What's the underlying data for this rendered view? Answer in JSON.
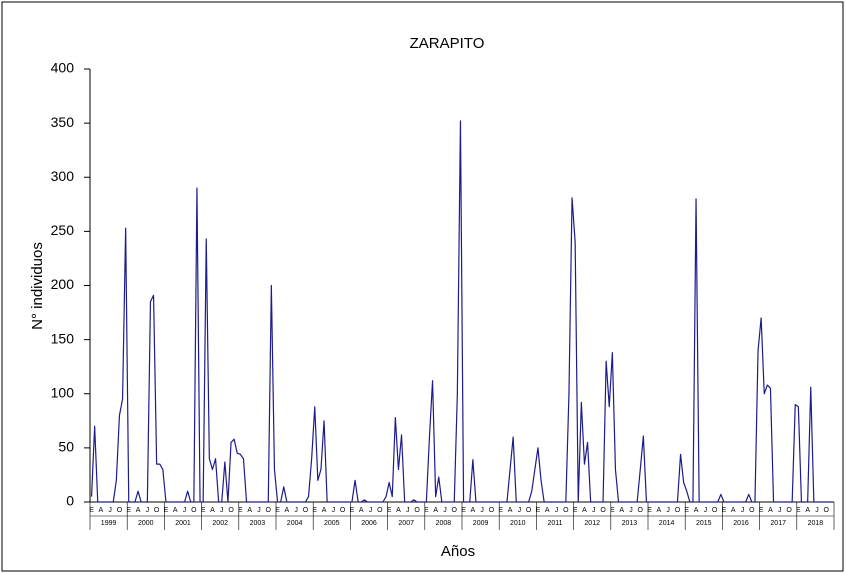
{
  "chart_data": {
    "type": "line",
    "title": "ZARAPITO",
    "y_label": "N° individuos",
    "x_label": "Años",
    "categories": [
      "E",
      null,
      null,
      "A",
      null,
      null,
      "J",
      null,
      null,
      "O",
      null,
      null,
      "E",
      null,
      null,
      "A",
      null,
      null,
      "J",
      null,
      null,
      "O",
      null,
      null,
      "E",
      null,
      null,
      "A",
      null,
      null,
      "J",
      null,
      null,
      "O",
      null,
      null,
      "E",
      null,
      null,
      "A",
      null,
      null,
      "J",
      null,
      null,
      "O",
      null,
      null,
      "E",
      null,
      null,
      "A",
      null,
      null,
      "J",
      null,
      null,
      "O",
      null,
      null,
      "E",
      null,
      null,
      "A",
      null,
      null,
      "J",
      null,
      null,
      "O",
      null,
      null,
      "E",
      null,
      null,
      "A",
      null,
      null,
      "J",
      null,
      null,
      "O",
      null,
      null,
      "E",
      null,
      null,
      "A",
      null,
      null,
      "J",
      null,
      null,
      "O",
      null,
      null,
      "E",
      null,
      null,
      "A",
      null,
      null,
      "J",
      null,
      null,
      "O",
      null,
      null,
      "E",
      null,
      null,
      "A",
      null,
      null,
      "J",
      null,
      null,
      "O",
      null,
      null,
      "E",
      null,
      null,
      "A",
      null,
      null,
      "J",
      null,
      null,
      "O",
      null,
      null,
      "E",
      null,
      null,
      "A",
      null,
      null,
      "J",
      null,
      null,
      "O",
      null,
      null,
      "E",
      null,
      null,
      "A",
      null,
      null,
      "J",
      null,
      null,
      "O",
      null,
      null,
      "E",
      null,
      null,
      "A",
      null,
      null,
      "J",
      null,
      null,
      "O",
      null,
      null,
      "E",
      null,
      null,
      "A",
      null,
      null,
      "J",
      null,
      null,
      "O",
      null,
      null,
      "E",
      null,
      null,
      "A",
      null,
      null,
      "J",
      null,
      null,
      "O",
      null,
      null,
      "E",
      null,
      null,
      "A",
      null,
      null,
      "J",
      null,
      null,
      "O",
      null,
      null,
      "E",
      null,
      null,
      "A",
      null,
      null,
      "J",
      null,
      null,
      "O",
      null,
      null,
      "E",
      null,
      null,
      "A",
      null,
      null,
      "J",
      null,
      null,
      "O",
      null,
      null,
      "E",
      null,
      null,
      "A",
      null,
      null,
      "J",
      null,
      null,
      "O",
      null,
      null
    ],
    "years": [
      "1999",
      "2000",
      "2001",
      "2002",
      "2003",
      "2004",
      "2005",
      "2006",
      "2007",
      "2008",
      "2009",
      "2010",
      "2011",
      "2012",
      "2013",
      "2014",
      "2015",
      "2016",
      "2017",
      "2018"
    ],
    "values": [
      5,
      70,
      0,
      0,
      0,
      0,
      0,
      0,
      20,
      80,
      95,
      253,
      0,
      0,
      0,
      10,
      0,
      0,
      0,
      185,
      191,
      35,
      35,
      30,
      0,
      0,
      0,
      0,
      0,
      0,
      0,
      10,
      0,
      0,
      290,
      0,
      0,
      243,
      40,
      30,
      40,
      0,
      0,
      37,
      0,
      55,
      58,
      45,
      44,
      40,
      0,
      0,
      0,
      0,
      0,
      0,
      0,
      0,
      200,
      30,
      0,
      0,
      14,
      0,
      0,
      0,
      0,
      0,
      0,
      0,
      5,
      40,
      88,
      20,
      30,
      75,
      0,
      0,
      0,
      0,
      0,
      0,
      0,
      0,
      0,
      20,
      0,
      0,
      2,
      0,
      0,
      0,
      0,
      0,
      0,
      5,
      18,
      5,
      78,
      30,
      62,
      0,
      0,
      0,
      2,
      0,
      0,
      0,
      0,
      60,
      112,
      5,
      23,
      0,
      0,
      0,
      0,
      0,
      100,
      352,
      0,
      0,
      0,
      39,
      0,
      0,
      0,
      0,
      0,
      0,
      0,
      0,
      0,
      0,
      0,
      30,
      60,
      0,
      0,
      0,
      0,
      0,
      10,
      30,
      50,
      20,
      0,
      0,
      0,
      0,
      0,
      0,
      0,
      0,
      100,
      281,
      240,
      0,
      92,
      35,
      55,
      0,
      0,
      0,
      0,
      0,
      130,
      88,
      138,
      30,
      0,
      0,
      0,
      0,
      0,
      0,
      0,
      30,
      61,
      0,
      0,
      0,
      0,
      0,
      0,
      0,
      0,
      0,
      0,
      0,
      44,
      18,
      10,
      0,
      0,
      280,
      0,
      0,
      0,
      0,
      0,
      0,
      0,
      7,
      0,
      0,
      0,
      0,
      0,
      0,
      0,
      0,
      7,
      0,
      0,
      140,
      170,
      100,
      108,
      105,
      0,
      0,
      0,
      0,
      0,
      0,
      0,
      90,
      88,
      0,
      0,
      0,
      106,
      0,
      0,
      0,
      0,
      0,
      0,
      0
    ],
    "color": "#1c1c8c",
    "ylim": [
      0,
      400
    ],
    "yticks": [
      0,
      50,
      100,
      150,
      200,
      250,
      300,
      350,
      400
    ],
    "grid": false
  }
}
